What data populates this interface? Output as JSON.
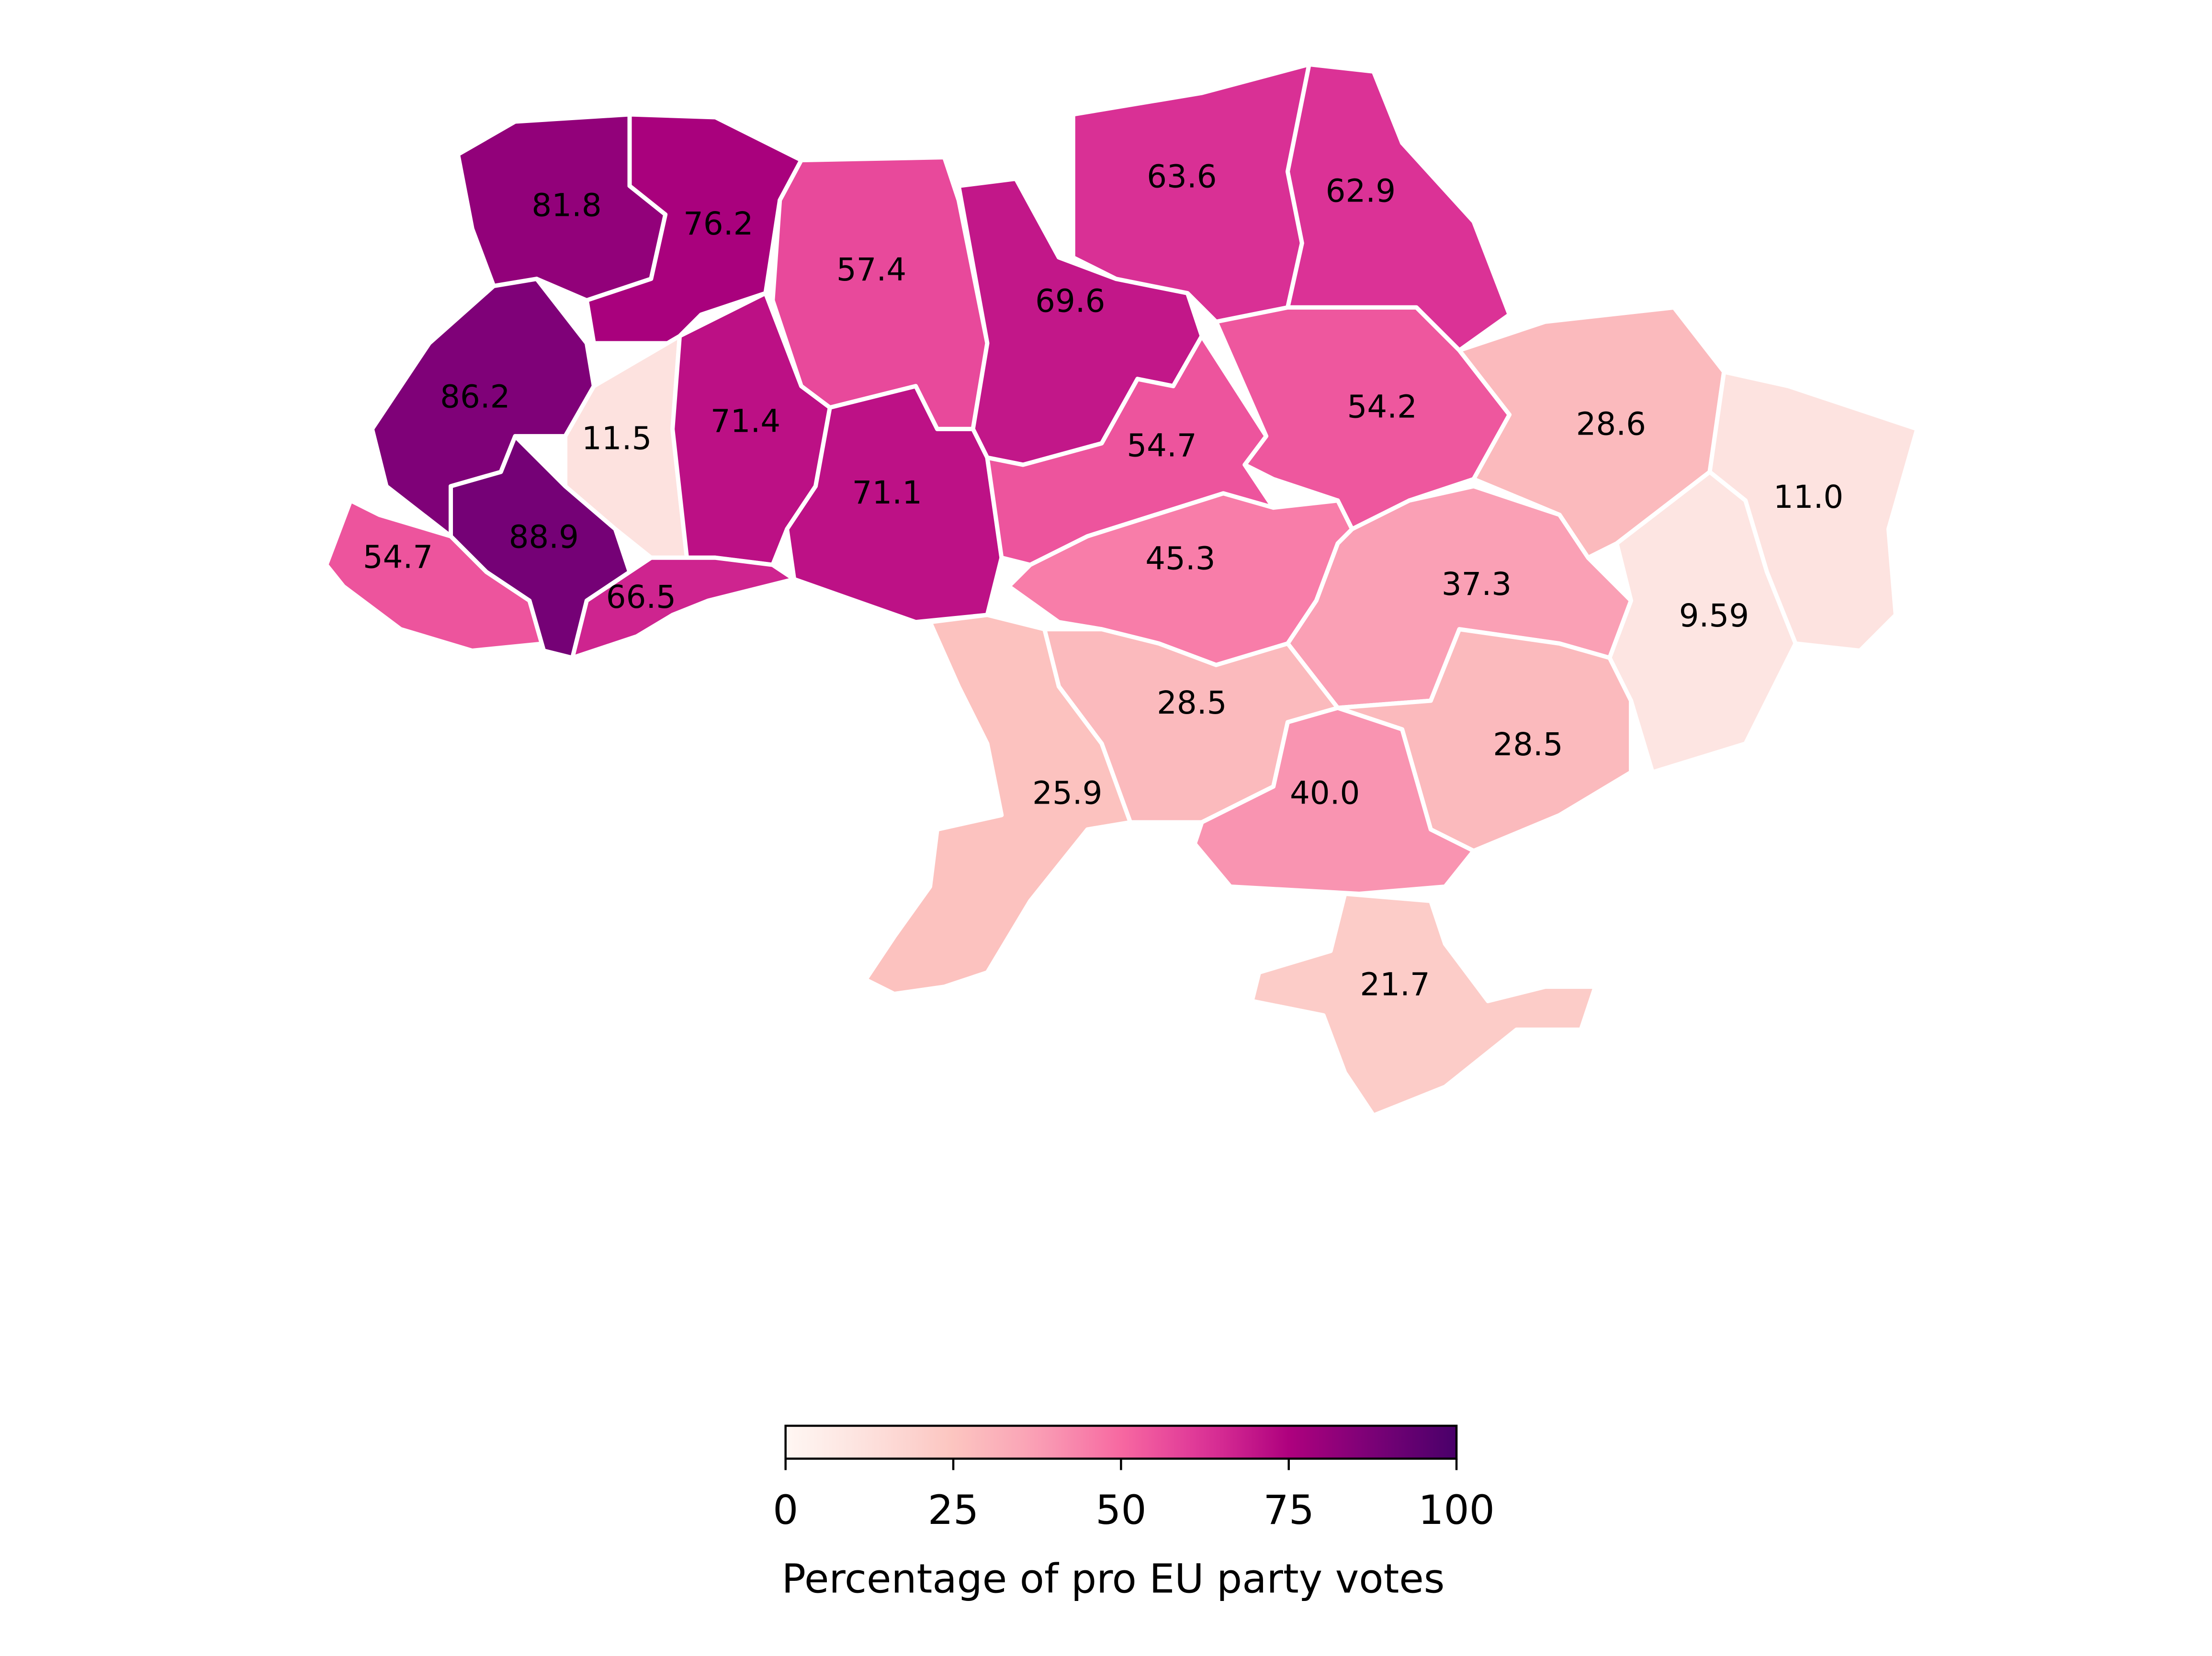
{
  "chart_data": {
    "type": "choropleth",
    "values": [
      81.8,
      76.2,
      57.4,
      69.6,
      63.6,
      62.9,
      86.2,
      11.5,
      71.4,
      71.1,
      54.7,
      54.2,
      28.6,
      11.0,
      54.7,
      88.9,
      66.5,
      45.3,
      37.3,
      9.59,
      28.5,
      28.5,
      25.9,
      40.0,
      21.7
    ],
    "value_labels": [
      "81.8",
      "76.2",
      "57.4",
      "69.6",
      "63.6",
      "62.9",
      "86.2",
      "11.5",
      "71.4",
      "71.1",
      "54.7",
      "54.2",
      "28.6",
      "11.0",
      "54.7",
      "88.9",
      "66.5",
      "45.3",
      "37.3",
      "9.59",
      "28.5",
      "28.5",
      "25.9",
      "40.0",
      "21.7"
    ],
    "colormap": "RdPu",
    "clim": [
      0,
      100
    ],
    "cticks": [
      0,
      25,
      50,
      75,
      100
    ],
    "colorbar_label": "Percentage of pro EU party votes"
  }
}
